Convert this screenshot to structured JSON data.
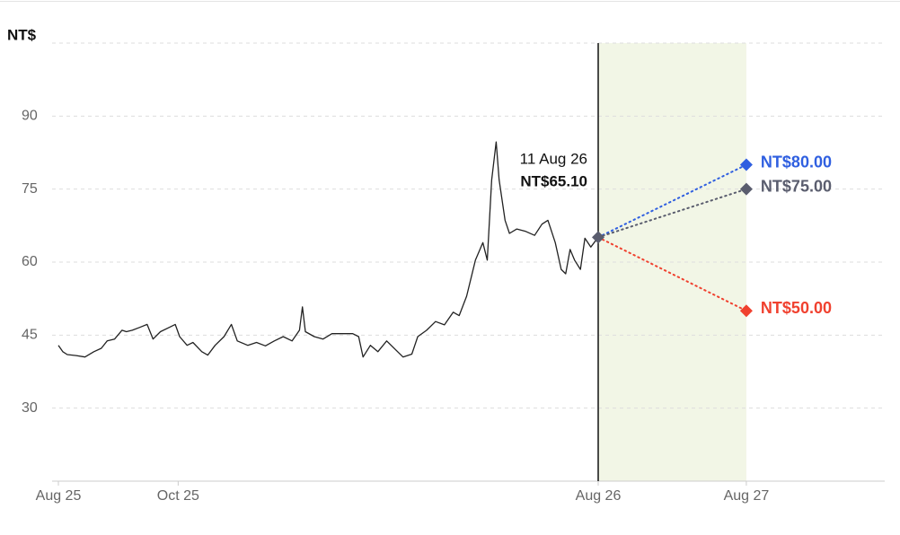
{
  "chart_data": {
    "type": "line",
    "y_unit_label": "NT$",
    "x": [
      0,
      3,
      6,
      12,
      18,
      24,
      29,
      33,
      38,
      43,
      46,
      50,
      55,
      60,
      64,
      69,
      75,
      79,
      82,
      87,
      91,
      97,
      101,
      106,
      112,
      117,
      121,
      128,
      134,
      140,
      146,
      152,
      158,
      163,
      165,
      167,
      173,
      179,
      185,
      191,
      199,
      203,
      206,
      211,
      216,
      222,
      228,
      233,
      239,
      243,
      249,
      255,
      261,
      267,
      271,
      276,
      282,
      287,
      290,
      293,
      296,
      298,
      302,
      305,
      310,
      316,
      322,
      327,
      331,
      336,
      340,
      343,
      346,
      349,
      353,
      356,
      360,
      365
    ],
    "values": [
      42.9,
      41.6,
      41.0,
      40.8,
      40.5,
      41.6,
      42.3,
      43.8,
      44.2,
      46.0,
      45.7,
      46.0,
      46.6,
      47.2,
      44.2,
      45.7,
      46.6,
      47.2,
      44.7,
      42.9,
      43.5,
      41.6,
      40.9,
      42.9,
      44.7,
      47.2,
      43.8,
      42.9,
      43.5,
      42.8,
      43.8,
      44.7,
      43.8,
      46.0,
      50.8,
      45.7,
      44.7,
      44.2,
      45.3,
      45.3,
      45.3,
      44.7,
      40.5,
      42.9,
      41.6,
      43.8,
      42.0,
      40.5,
      41.1,
      44.7,
      46.0,
      47.8,
      47.1,
      49.7,
      49.0,
      53.0,
      60.4,
      64.0,
      60.4,
      76.9,
      84.7,
      76.9,
      68.6,
      65.9,
      66.8,
      66.3,
      65.5,
      67.8,
      68.6,
      64.0,
      58.5,
      57.6,
      62.6,
      60.4,
      58.5,
      64.9,
      63.1,
      65.1
    ],
    "color": "#222222",
    "current": {
      "x": 365,
      "value": 65.1,
      "date_label": "11 Aug 26",
      "value_label": "NT$65.10",
      "color": "#5a5d6e"
    },
    "forecast_x": 730,
    "forecast_band_color": "#f2f6e6",
    "forecasts": [
      {
        "value": 80,
        "value_label": "NT$80.00",
        "color": "#2f5fe0"
      },
      {
        "value": 75,
        "value_label": "NT$75.00",
        "color": "#5a5d6e"
      },
      {
        "value": 50,
        "value_label": "NT$50.00",
        "color": "#f0412f"
      }
    ],
    "xlim": [
      0,
      1071
    ],
    "xticks": [
      {
        "value": 0,
        "label": "Aug 25"
      },
      {
        "value": 81,
        "label": "Oct 25"
      },
      {
        "value": 365,
        "label": "Aug 26"
      },
      {
        "value": 730,
        "label": "Aug 27"
      }
    ],
    "ylim": [
      15,
      105
    ],
    "yticks": [
      30,
      45,
      60,
      75,
      90
    ],
    "grid": true
  }
}
